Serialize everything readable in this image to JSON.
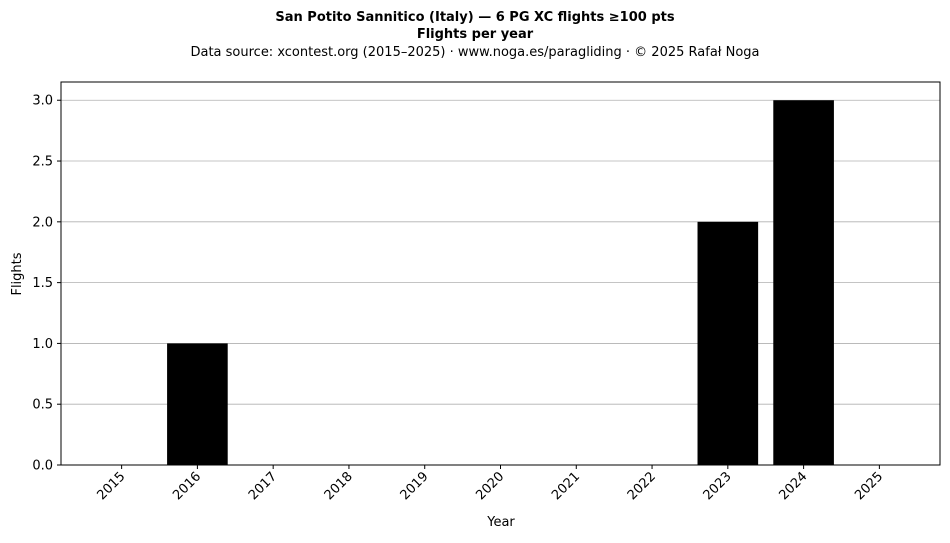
{
  "chart_data": {
    "type": "bar",
    "title": "San Potito Sannitico (Italy)  —  6 PG XC flights ≥100 pts",
    "subtitle": "Flights per year",
    "source_note": "Data source: xcontest.org (2015–2025)  ·  www.noga.es/paragliding  ·  © 2025 Rafał Noga",
    "xlabel": "Year",
    "ylabel": "Flights",
    "categories": [
      "2015",
      "2016",
      "2017",
      "2018",
      "2019",
      "2020",
      "2021",
      "2022",
      "2023",
      "2024",
      "2025"
    ],
    "values": [
      0,
      1,
      0,
      0,
      0,
      0,
      0,
      0,
      2,
      3,
      0
    ],
    "ylim": [
      0,
      3.15
    ],
    "yticks": [
      "0.0",
      "0.5",
      "1.0",
      "1.5",
      "2.0",
      "2.5",
      "3.0"
    ],
    "ytick_values": [
      0,
      0.5,
      1.0,
      1.5,
      2.0,
      2.5,
      3.0
    ],
    "grid": "horizontal",
    "bar_color": "#000000",
    "grid_color": "#b0b0b0"
  }
}
